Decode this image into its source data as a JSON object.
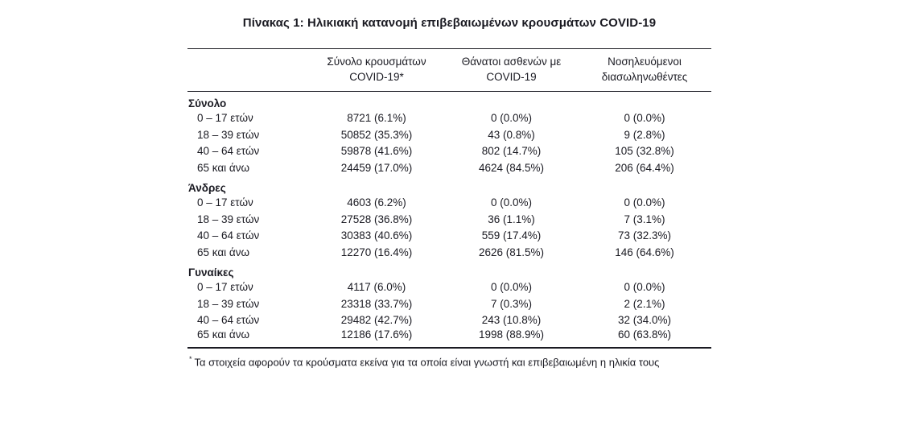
{
  "colors": {
    "background": "#ffffff",
    "text": "#1a1a22",
    "rule": "#1a1a22"
  },
  "chart_data": {
    "type": "table",
    "title": "Πίνακας 1: Ηλικιακή κατανομή επιβεβαιωμένων κρουσμάτων COVID-19",
    "column_headers": [
      {
        "line1": "Σύνολο κρουσμάτων",
        "line2": "COVID-19*"
      },
      {
        "line1": "Θάνατοι ασθενών με",
        "line2": "COVID-19"
      },
      {
        "line1": "Νοσηλευόμενοι",
        "line2": "διασωληνωθέντες"
      }
    ],
    "sections": [
      {
        "label": "Σύνολο",
        "rows": [
          {
            "age_group": "0 – 17 ετών",
            "cases": "8721 (6.1%)",
            "deaths": "0 (0.0%)",
            "intubated": "0 (0.0%)"
          },
          {
            "age_group": "18 – 39 ετών",
            "cases": "50852 (35.3%)",
            "deaths": "43 (0.8%)",
            "intubated": "9 (2.8%)"
          },
          {
            "age_group": "40 – 64 ετών",
            "cases": "59878 (41.6%)",
            "deaths": "802 (14.7%)",
            "intubated": "105 (32.8%)"
          },
          {
            "age_group": "65 και άνω",
            "cases": "24459 (17.0%)",
            "deaths": "4624 (84.5%)",
            "intubated": "206 (64.4%)"
          }
        ]
      },
      {
        "label": "Άνδρες",
        "rows": [
          {
            "age_group": "0 – 17 ετών",
            "cases": "4603 (6.2%)",
            "deaths": "0 (0.0%)",
            "intubated": "0 (0.0%)"
          },
          {
            "age_group": "18 – 39 ετών",
            "cases": "27528 (36.8%)",
            "deaths": "36 (1.1%)",
            "intubated": "7 (3.1%)"
          },
          {
            "age_group": "40 – 64 ετών",
            "cases": "30383 (40.6%)",
            "deaths": "559 (17.4%)",
            "intubated": "73 (32.3%)"
          },
          {
            "age_group": "65 και άνω",
            "cases": "12270 (16.4%)",
            "deaths": "2626 (81.5%)",
            "intubated": "146 (64.6%)"
          }
        ]
      },
      {
        "label": "Γυναίκες",
        "rows": [
          {
            "age_group": "0 – 17 ετών",
            "cases": "4117 (6.0%)",
            "deaths": "0 (0.0%)",
            "intubated": "0 (0.0%)"
          },
          {
            "age_group": "18 – 39 ετών",
            "cases": "23318 (33.7%)",
            "deaths": "7 (0.3%)",
            "intubated": "2 (2.1%)"
          },
          {
            "age_group": "40 – 64 ετών",
            "cases": "29482 (42.7%)",
            "deaths": "243 (10.8%)",
            "intubated": "32 (34.0%)"
          },
          {
            "age_group": "65 και άνω",
            "cases": "12186 (17.6%)",
            "deaths": "1998 (88.9%)",
            "intubated": "60 (63.8%)"
          }
        ]
      }
    ],
    "footnote_marker": "*",
    "footnote_text": "Τα στοιχεία αφορούν τα κρούσματα εκείνα για τα οποία είναι γνωστή και επιβεβαιωμένη η ηλικία τους"
  }
}
